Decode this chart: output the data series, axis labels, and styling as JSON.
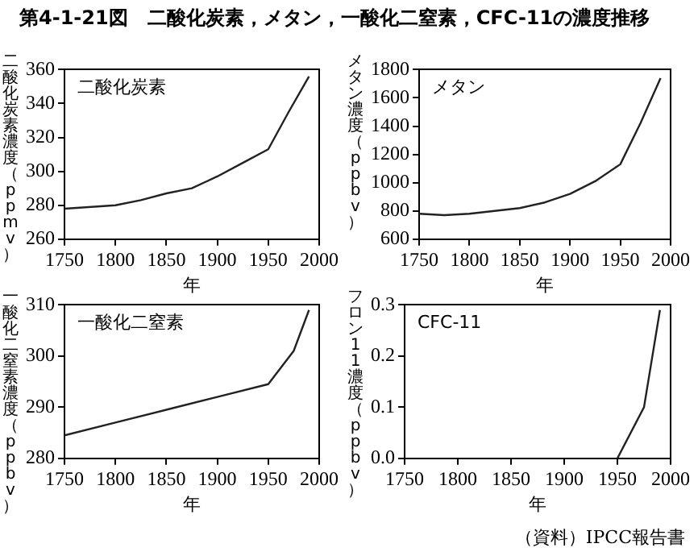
{
  "chart_data": [
    {
      "type": "line",
      "title": "第4-1-21図　二酸化炭素，メタン，一酸化二窒素，CFC-11の濃度推移",
      "xlabel": "年",
      "ylabel": "二酸化炭素濃度（ppmv）",
      "xlim": [
        1750,
        2000
      ],
      "xticks": [
        1750,
        1800,
        1850,
        1900,
        1950,
        2000
      ],
      "ylim": [
        260,
        360
      ],
      "yticks": [
        260,
        280,
        300,
        320,
        340,
        360
      ],
      "grid": false,
      "legend": false,
      "series": [
        {
          "name": "二酸化炭素",
          "color": "#222222",
          "x": [
            1750,
            1800,
            1825,
            1850,
            1875,
            1900,
            1925,
            1950,
            1970,
            1990
          ],
          "values": [
            278,
            280,
            283,
            287,
            290,
            297,
            305,
            313,
            335,
            356
          ]
        }
      ]
    },
    {
      "type": "line",
      "xlabel": "年",
      "ylabel": "メタン濃度（ppbv）",
      "xlim": [
        1750,
        2000
      ],
      "xticks": [
        1750,
        1800,
        1850,
        1900,
        1950,
        2000
      ],
      "ylim": [
        600,
        1800
      ],
      "yticks": [
        600,
        800,
        1000,
        1200,
        1400,
        1600,
        1800
      ],
      "grid": false,
      "legend": false,
      "series": [
        {
          "name": "メタン",
          "color": "#222222",
          "x": [
            1750,
            1775,
            1800,
            1850,
            1875,
            1900,
            1925,
            1950,
            1970,
            1990
          ],
          "values": [
            780,
            770,
            780,
            820,
            860,
            920,
            1010,
            1130,
            1420,
            1740
          ]
        }
      ]
    },
    {
      "type": "line",
      "xlabel": "年",
      "ylabel": "一酸化二窒素濃度（ppbv）",
      "xlim": [
        1750,
        2000
      ],
      "xticks": [
        1750,
        1800,
        1850,
        1900,
        1950,
        2000
      ],
      "ylim": [
        280,
        310
      ],
      "yticks": [
        280,
        290,
        300,
        310
      ],
      "grid": false,
      "legend": false,
      "series": [
        {
          "name": "一酸化二窒素",
          "color": "#222222",
          "x": [
            1750,
            1800,
            1850,
            1900,
            1950,
            1975,
            1990
          ],
          "values": [
            284.5,
            287,
            289.5,
            292,
            294.5,
            301,
            309
          ]
        }
      ]
    },
    {
      "type": "line",
      "xlabel": "年",
      "ylabel": "フロン11濃度（ppbv）",
      "xlim": [
        1750,
        2000
      ],
      "xticks": [
        1750,
        1800,
        1850,
        1900,
        1950,
        2000
      ],
      "ylim": [
        0,
        0.3
      ],
      "yticks": [
        {
          "value": 0,
          "label": "0.0"
        },
        {
          "value": 0.1,
          "label": "0.1"
        },
        {
          "value": 0.2,
          "label": "0.2"
        },
        {
          "value": 0.3,
          "label": "0.3"
        }
      ],
      "grid": false,
      "legend": false,
      "annotations": [
        "（資料）IPCC報告書"
      ],
      "series": [
        {
          "name": "CFC-11",
          "color": "#222222",
          "x": [
            1950,
            1975,
            1990
          ],
          "values": [
            0,
            0.1,
            0.29
          ]
        }
      ]
    }
  ]
}
